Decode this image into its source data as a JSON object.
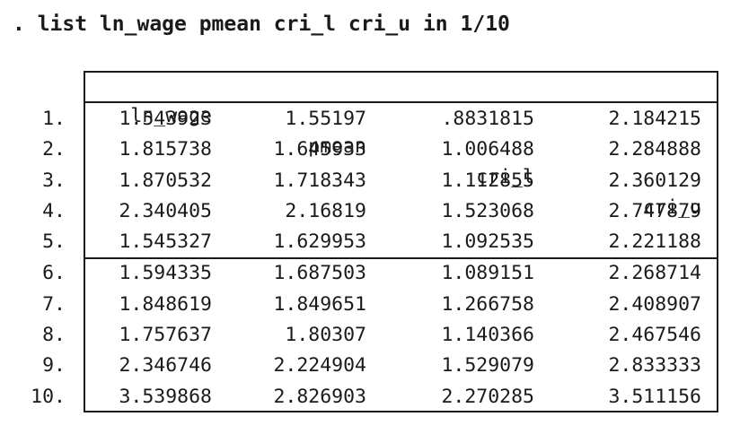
{
  "command": ". list ln_wage pmean cri_l cri_u in 1/10",
  "table": {
    "headers": [
      "ln_wage",
      "pmean",
      "cri_l",
      "cri_u"
    ],
    "rows": [
      {
        "num": "1.",
        "cells": [
          "1.543923",
          "1.55197",
          ".8831815",
          "2.184215"
        ]
      },
      {
        "num": "2.",
        "cells": [
          "1.815738",
          "1.645933",
          "1.006488",
          "2.284888"
        ]
      },
      {
        "num": "3.",
        "cells": [
          "1.870532",
          "1.718343",
          "1.112855",
          "2.360129"
        ]
      },
      {
        "num": "4.",
        "cells": [
          "2.340405",
          "2.16819",
          "1.523068",
          "2.747879"
        ]
      },
      {
        "num": "5.",
        "cells": [
          "1.545327",
          "1.629953",
          "1.092535",
          "2.221188"
        ]
      },
      {
        "num": "6.",
        "cells": [
          "1.594335",
          "1.687503",
          "1.089151",
          "2.268714"
        ]
      },
      {
        "num": "7.",
        "cells": [
          "1.848619",
          "1.849651",
          "1.266758",
          "2.408907"
        ]
      },
      {
        "num": "8.",
        "cells": [
          "1.757637",
          "1.80307",
          "1.140366",
          "2.467546"
        ]
      },
      {
        "num": "9.",
        "cells": [
          "2.346746",
          "2.224904",
          "1.529079",
          "2.833333"
        ]
      },
      {
        "num": "10.",
        "cells": [
          "3.539868",
          "2.826903",
          "2.270285",
          "3.511156"
        ]
      }
    ]
  }
}
